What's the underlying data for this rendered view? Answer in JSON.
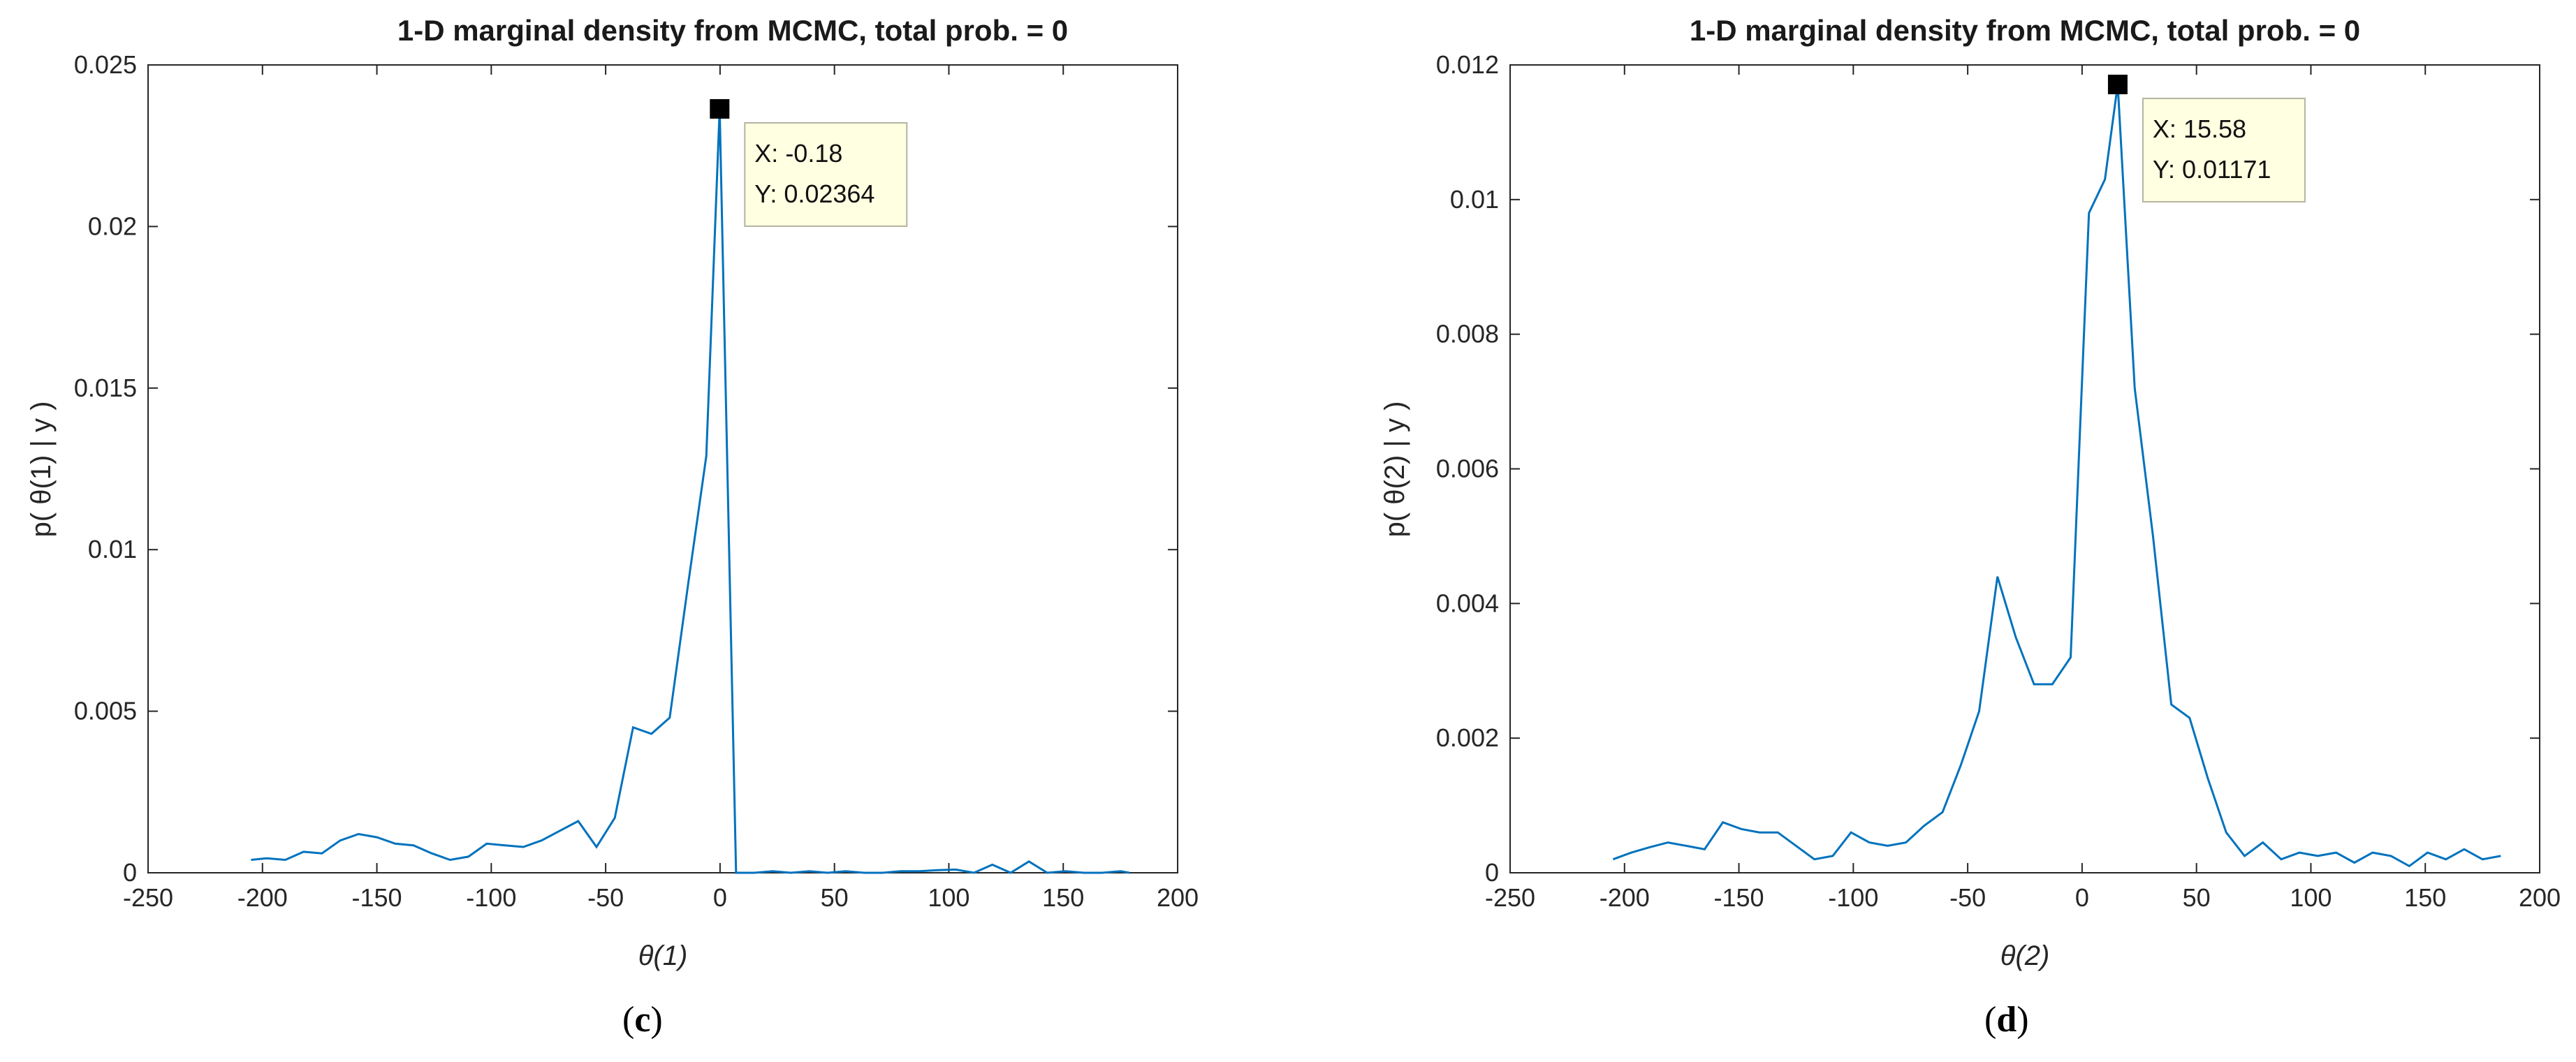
{
  "chart_data": [
    {
      "type": "line",
      "title": "1-D marginal density from MCMC, total prob. = 0",
      "xlabel": "θ(1)",
      "ylabel": "p( θ(1) | y )",
      "caption_letter": "c",
      "xlim": [
        -250,
        200
      ],
      "ylim": [
        0,
        0.025
      ],
      "xticks": [
        -250,
        -200,
        -150,
        -100,
        -50,
        0,
        50,
        100,
        150,
        200
      ],
      "yticks": [
        0,
        0.005,
        0.01,
        0.015,
        0.02,
        0.025
      ],
      "xtick_labels": [
        "-250",
        "-200",
        "-150",
        "-100",
        "-50",
        "0",
        "50",
        "100",
        "150",
        "200"
      ],
      "ytick_labels": [
        "0",
        "0.005",
        "0.01",
        "0.015",
        "0.02",
        "0.025"
      ],
      "line_color": "#0072BD",
      "series": [
        {
          "x": [
            -205,
            -198,
            -190,
            -182,
            -174,
            -166,
            -158,
            -150,
            -142,
            -134,
            -126,
            -118,
            -110,
            -102,
            -94,
            -86,
            -78,
            -70,
            -62,
            -54,
            -46,
            -38,
            -30,
            -22,
            -14,
            -6,
            -0.18,
            7,
            15,
            23,
            31,
            39,
            47,
            55,
            63,
            71,
            79,
            87,
            95,
            103,
            111,
            119,
            127,
            135,
            143,
            151,
            159,
            167,
            175,
            179
          ],
          "y": [
            0.0004,
            0.00045,
            0.0004,
            0.00065,
            0.0006,
            0.001,
            0.0012,
            0.0011,
            0.0009,
            0.00085,
            0.0006,
            0.0004,
            0.0005,
            0.0009,
            0.00085,
            0.0008,
            0.001,
            0.0013,
            0.0016,
            0.0008,
            0.0017,
            0.0045,
            0.0043,
            0.0048,
            0.0089,
            0.0129,
            0.02364,
            0.0,
            0.0,
            5e-05,
            0.0,
            5e-05,
            0.0,
            5e-05,
            0.0,
            0.0,
            5e-05,
            5e-05,
            8e-05,
            0.0001,
            0.0,
            0.00025,
            0.0,
            0.00035,
            0.0,
            5e-05,
            0.0,
            0.0,
            5e-05,
            0.0
          ]
        }
      ],
      "datatip": {
        "x": -0.18,
        "y": 0.02364,
        "x_text": "X: -0.18",
        "y_text": "Y: 0.02364"
      }
    },
    {
      "type": "line",
      "title": "1-D marginal density from MCMC, total prob. = 0",
      "xlabel": "θ(2)",
      "ylabel": "p( θ(2) | y )",
      "caption_letter": "d",
      "xlim": [
        -250,
        200
      ],
      "ylim": [
        0,
        0.012
      ],
      "xticks": [
        -250,
        -200,
        -150,
        -100,
        -50,
        0,
        50,
        100,
        150,
        200
      ],
      "yticks": [
        0,
        0.002,
        0.004,
        0.006,
        0.008,
        0.01,
        0.012
      ],
      "xtick_labels": [
        "-250",
        "-200",
        "-150",
        "-100",
        "-50",
        "0",
        "50",
        "100",
        "150",
        "200"
      ],
      "ytick_labels": [
        "0",
        "0.002",
        "0.004",
        "0.006",
        "0.008",
        "0.01",
        "0.012"
      ],
      "line_color": "#0072BD",
      "series": [
        {
          "x": [
            -205,
            -197,
            -189,
            -181,
            -173,
            -165,
            -157,
            -149,
            -141,
            -133,
            -125,
            -117,
            -109,
            -101,
            -93,
            -85,
            -77,
            -69,
            -61,
            -53,
            -45,
            -37,
            -29,
            -21,
            -13,
            -5,
            3,
            10,
            15.58,
            23,
            31,
            39,
            47,
            55,
            63,
            71,
            79,
            87,
            95,
            103,
            111,
            119,
            127,
            135,
            143,
            151,
            159,
            167,
            175,
            183
          ],
          "y": [
            0.0002,
            0.0003,
            0.00038,
            0.00045,
            0.0004,
            0.00035,
            0.00075,
            0.00065,
            0.0006,
            0.0006,
            0.0004,
            0.0002,
            0.00025,
            0.0006,
            0.00045,
            0.0004,
            0.00045,
            0.0007,
            0.0009,
            0.0016,
            0.0024,
            0.0044,
            0.0035,
            0.0028,
            0.0028,
            0.0032,
            0.0098,
            0.0103,
            0.01171,
            0.0072,
            0.005,
            0.0025,
            0.0023,
            0.0014,
            0.0006,
            0.00025,
            0.00045,
            0.0002,
            0.0003,
            0.00025,
            0.0003,
            0.00015,
            0.0003,
            0.00025,
            0.0001,
            0.0003,
            0.0002,
            0.00035,
            0.0002,
            0.00025
          ]
        }
      ],
      "datatip": {
        "x": 15.58,
        "y": 0.01171,
        "x_text": "X: 15.58",
        "y_text": "Y: 0.01171"
      }
    }
  ]
}
